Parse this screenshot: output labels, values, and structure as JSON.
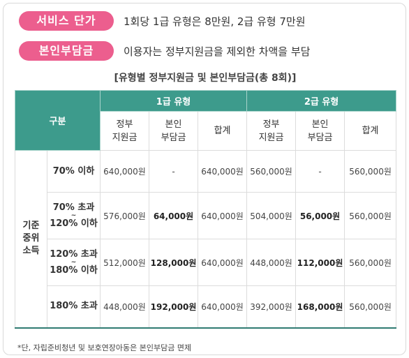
{
  "service_price": {
    "label": "서비스 단가",
    "text": "1회당 1급 유형은 8만원, 2급 유형 7만원"
  },
  "copay": {
    "label": "본인부담금",
    "text": "이용자는 정부지원금을 제외한 차액을 부담"
  },
  "table_title": "[유형별 정부지원금 및 본인부담금(총 8회)]",
  "table": {
    "header_category": "구분",
    "grade1": "1급 유형",
    "grade2": "2급 유형",
    "gov_support": "정부\n지원금",
    "self_pay": "본인\n부담금",
    "total": "합계",
    "group_label": "기준\n중위\n소득",
    "rows": [
      {
        "range_top": "70% 이하",
        "range_bottom": "",
        "g1_gov": "640,000원",
        "g1_self": "-",
        "g1_total": "640,000원",
        "g2_gov": "560,000원",
        "g2_self": "-",
        "g2_total": "560,000원"
      },
      {
        "range_top": "70% 초과",
        "range_bottom": "120% 이하",
        "g1_gov": "576,000원",
        "g1_self": "64,000원",
        "g1_total": "640,000원",
        "g2_gov": "504,000원",
        "g2_self": "56,000원",
        "g2_total": "560,000원"
      },
      {
        "range_top": "120% 초과",
        "range_bottom": "180% 이하",
        "g1_gov": "512,000원",
        "g1_self": "128,000원",
        "g1_total": "640,000원",
        "g2_gov": "448,000원",
        "g2_self": "112,000원",
        "g2_total": "560,000원"
      },
      {
        "range_top": "180% 초과",
        "range_bottom": "",
        "g1_gov": "448,000원",
        "g1_self": "192,000원",
        "g1_total": "640,000원",
        "g2_gov": "392,000원",
        "g2_self": "168,000원",
        "g2_total": "560,000원"
      }
    ]
  },
  "footnote": "*단, 자립준비청년 및 보호연장아동은 본인부담금 면제",
  "colors": {
    "pill": "#ec5e8e",
    "header": "#3d9b8c"
  }
}
